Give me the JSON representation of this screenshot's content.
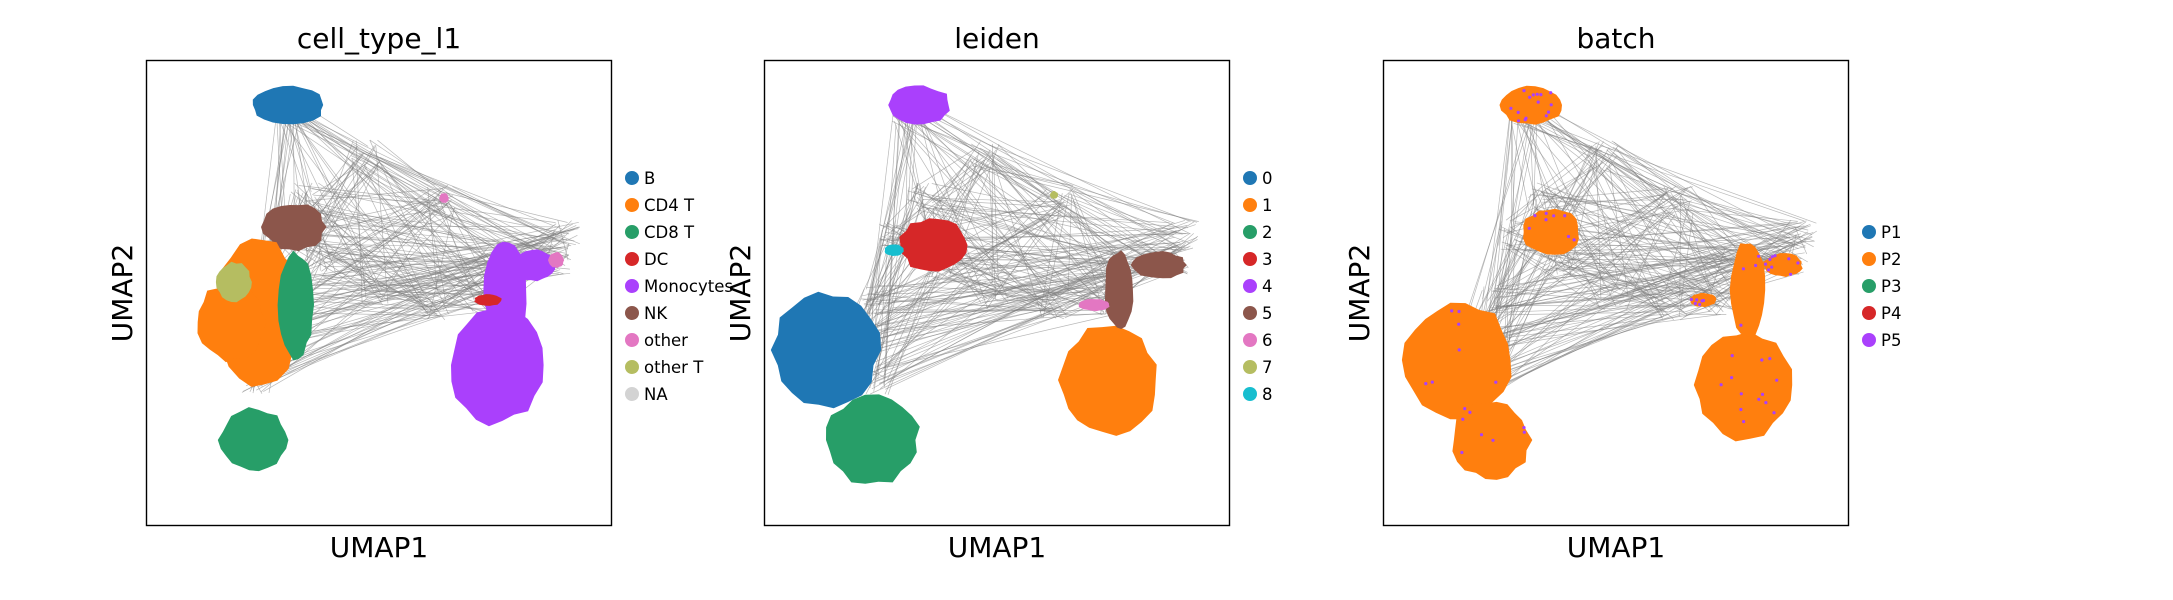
{
  "chart_data": [
    {
      "type": "scatter",
      "title": "cell_type_l1",
      "xlabel": "UMAP1",
      "ylabel": "UMAP2",
      "x_ticks": false,
      "y_ticks": false,
      "legend_position": "right",
      "legend": [
        {
          "name": "B",
          "color": "#1f77b4"
        },
        {
          "name": "CD4 T",
          "color": "#ff7f0e"
        },
        {
          "name": "CD8 T",
          "color": "#279e68"
        },
        {
          "name": "DC",
          "color": "#d62728"
        },
        {
          "name": "Monocytes",
          "color": "#aa40fc"
        },
        {
          "name": "NK",
          "color": "#8c564b"
        },
        {
          "name": "other",
          "color": "#e377c2"
        },
        {
          "name": "other T",
          "color": "#b5bd61"
        },
        {
          "name": "NA",
          "color": "#d3d3d3"
        }
      ]
    },
    {
      "type": "scatter",
      "title": "leiden",
      "xlabel": "UMAP1",
      "ylabel": "UMAP2",
      "x_ticks": false,
      "y_ticks": false,
      "legend_position": "right",
      "legend": [
        {
          "name": "0",
          "color": "#1f77b4"
        },
        {
          "name": "1",
          "color": "#ff7f0e"
        },
        {
          "name": "2",
          "color": "#279e68"
        },
        {
          "name": "3",
          "color": "#d62728"
        },
        {
          "name": "4",
          "color": "#aa40fc"
        },
        {
          "name": "5",
          "color": "#8c564b"
        },
        {
          "name": "6",
          "color": "#e377c2"
        },
        {
          "name": "7",
          "color": "#b5bd61"
        },
        {
          "name": "8",
          "color": "#17becf"
        }
      ]
    },
    {
      "type": "scatter",
      "title": "batch",
      "xlabel": "UMAP1",
      "ylabel": "UMAP2",
      "x_ticks": false,
      "y_ticks": false,
      "legend_position": "right",
      "legend": [
        {
          "name": "P1",
          "color": "#1f77b4"
        },
        {
          "name": "P2",
          "color": "#ff7f0e"
        },
        {
          "name": "P3",
          "color": "#279e68"
        },
        {
          "name": "P4",
          "color": "#d62728"
        },
        {
          "name": "P5",
          "color": "#aa40fc"
        }
      ]
    }
  ]
}
